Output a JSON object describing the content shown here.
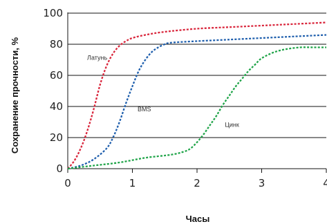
{
  "chart_data": {
    "type": "line",
    "title": "",
    "xlabel": "Часы",
    "ylabel": "Сохранение прочности, %",
    "xlim": [
      0,
      4
    ],
    "ylim": [
      0,
      100
    ],
    "xticks": [
      "0",
      "1",
      "2",
      "3",
      "4"
    ],
    "yticks": [
      "0",
      "20",
      "40",
      "60",
      "80",
      "100"
    ],
    "grid": "horizontal",
    "series": [
      {
        "name": "Латунь",
        "color": "#d9263c",
        "x": [
          0,
          0.1,
          0.2,
          0.3,
          0.4,
          0.5,
          0.6,
          0.7,
          0.8,
          0.9,
          1.0,
          1.2,
          1.5,
          2.0,
          2.5,
          3.0,
          3.5,
          4.0
        ],
        "y": [
          0,
          5,
          13,
          24,
          38,
          54,
          66,
          74,
          79,
          82,
          84,
          86,
          88,
          90,
          91,
          92,
          93,
          94
        ]
      },
      {
        "name": "BMS",
        "color": "#1f5fad",
        "x": [
          0,
          0.2,
          0.4,
          0.6,
          0.7,
          0.8,
          0.9,
          1.0,
          1.1,
          1.2,
          1.3,
          1.4,
          1.5,
          1.6,
          2.0,
          2.5,
          3.0,
          3.5,
          4.0
        ],
        "y": [
          0,
          2,
          6,
          13,
          20,
          30,
          42,
          53,
          63,
          70,
          75,
          78,
          80,
          81,
          82,
          83,
          84,
          85,
          86
        ]
      },
      {
        "name": "Цинк",
        "color": "#1fa448",
        "x": [
          0,
          0.4,
          0.8,
          1.2,
          1.6,
          1.8,
          1.9,
          2.0,
          2.1,
          2.2,
          2.3,
          2.4,
          2.5,
          2.6,
          2.7,
          2.8,
          2.9,
          3.0,
          3.2,
          3.4,
          3.6,
          3.8,
          4.0
        ],
        "y": [
          0,
          2,
          4,
          7,
          9,
          11,
          13,
          17,
          22,
          28,
          34,
          41,
          47,
          53,
          58,
          63,
          67,
          71,
          75,
          77,
          78,
          78,
          78
        ]
      }
    ],
    "annotations": [
      {
        "text": "Латунь",
        "x": 0.3,
        "y": 70
      },
      {
        "text": "BMS",
        "x": 1.08,
        "y": 37
      },
      {
        "text": "Цинк",
        "x": 2.43,
        "y": 27
      }
    ]
  }
}
